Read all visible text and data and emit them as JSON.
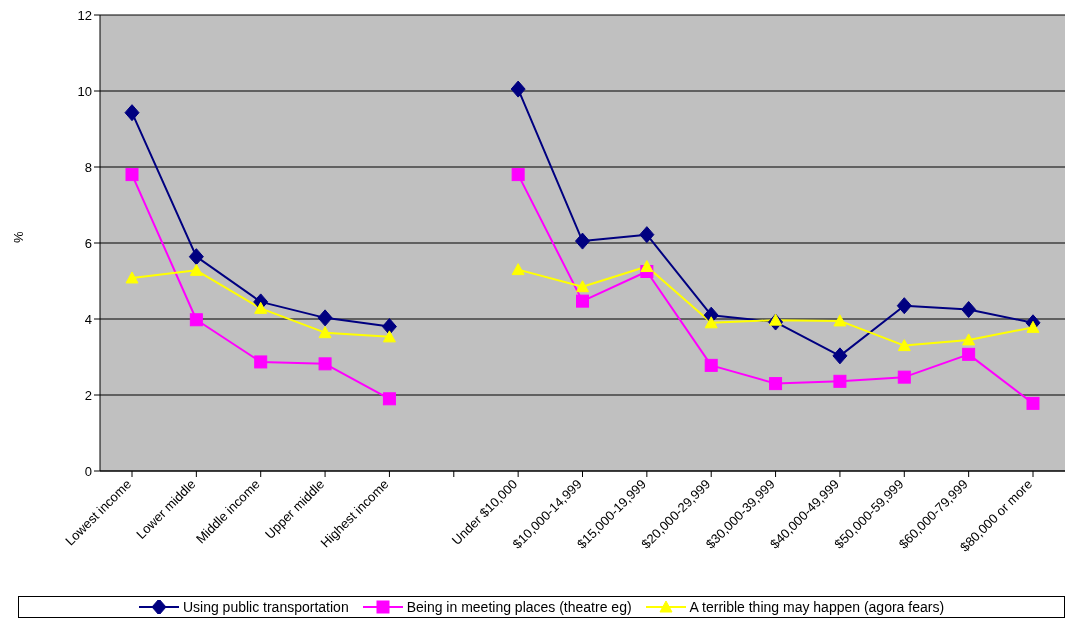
{
  "chart_data": {
    "type": "line",
    "ylabel": "%",
    "categories": [
      "Lowest income",
      "Lower middle",
      "Middle income",
      "Upper middle",
      "Highest income",
      null,
      "Under $10,000",
      "$10,000-14,999",
      "$15,000-19,999",
      "$20,000-29,999",
      "$30,000-39,999",
      "$40,000-49,999",
      "$50,000-59,999",
      "$60,000-79,999",
      "$80,000 or more"
    ],
    "series": [
      {
        "name": "Using public transportation",
        "color": "#000080",
        "marker": "diamond",
        "values": [
          9.43,
          5.64,
          4.45,
          4.03,
          3.8,
          null,
          10.05,
          6.05,
          6.22,
          4.1,
          3.92,
          3.03,
          4.35,
          4.25,
          3.9
        ]
      },
      {
        "name": "Being in meeting places (theatre eg)",
        "color": "#ff00ff",
        "marker": "square",
        "values": [
          7.8,
          3.98,
          2.87,
          2.82,
          1.9,
          null,
          7.8,
          4.47,
          5.25,
          2.78,
          2.3,
          2.36,
          2.47,
          3.07,
          1.78
        ]
      },
      {
        "name": "A terrible thing may happen (agora fears)",
        "color": "#ffff00",
        "marker": "triangle",
        "values": [
          5.08,
          5.28,
          4.28,
          3.64,
          3.53,
          null,
          5.3,
          4.85,
          5.38,
          3.9,
          3.97,
          3.95,
          3.3,
          3.45,
          3.78
        ]
      }
    ],
    "ylim": [
      0,
      12
    ],
    "yticks": [
      0,
      2,
      4,
      6,
      8,
      10,
      12
    ],
    "grid": "y",
    "legend": "bottom",
    "line_style": "solid"
  }
}
